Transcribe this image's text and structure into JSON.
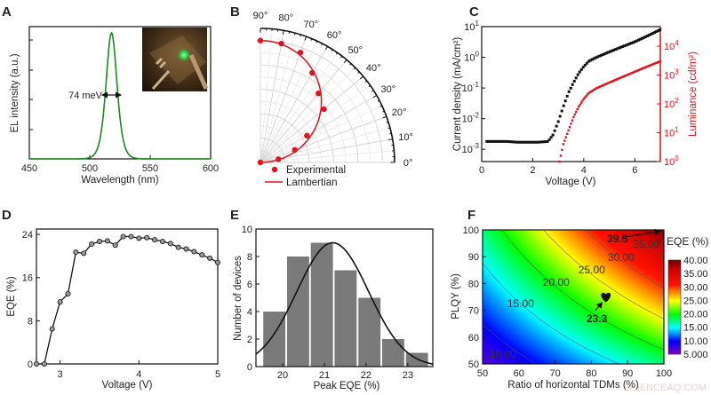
{
  "panels": {
    "a": "A",
    "b": "B",
    "c": "C",
    "d": "D",
    "e": "E",
    "f": "F"
  },
  "watermark": "SCIENCEAQ.COM",
  "colors": {
    "green": "#1a8a1a",
    "red": "#e3121b",
    "black": "#111111",
    "bar": "#7a7a7a"
  },
  "chart_data": [
    {
      "id": "A",
      "type": "line",
      "xlabel": "Wavelength (nm)",
      "ylabel": "EL intensity (a.u.)",
      "xlim": [
        450,
        600
      ],
      "ylim": [
        0,
        1.05
      ],
      "xticks": [
        450,
        500,
        550,
        600
      ],
      "peak_wavelength_nm": 518,
      "fwhm_nm": 16,
      "annotation": "74 meV",
      "inset": "device-photo-green-emission"
    },
    {
      "id": "B",
      "type": "polar",
      "angle_ticks": [
        "0°",
        "10°",
        "20°",
        "30°",
        "40°",
        "50°",
        "60°",
        "70°",
        "80°",
        "90°"
      ],
      "rlim": [
        0,
        1.1
      ],
      "series": [
        {
          "name": "Experimental",
          "style": "markers",
          "angles": [
            0,
            10,
            20,
            30,
            40,
            50,
            60,
            70,
            80,
            90
          ],
          "values": [
            0,
            0.15,
            0.3,
            0.44,
            0.68,
            0.74,
            0.85,
            0.96,
            0.99,
            1.0
          ]
        },
        {
          "name": "Lambertian",
          "style": "line",
          "function": "sin(angle)"
        }
      ]
    },
    {
      "id": "C",
      "type": "scatter",
      "xlabel": "Voltage (V)",
      "ylabel": "Current density (mA/cm²)",
      "ylabel_right": "Luminance (cd/m²)",
      "xlim": [
        0,
        7
      ],
      "xticks": [
        0,
        2,
        4,
        6
      ],
      "ylim_log_left": [
        -3.4,
        1
      ],
      "yticks_left_exp": [
        1,
        0,
        -1,
        -2,
        -3
      ],
      "ylim_log_right": [
        0,
        4.68
      ],
      "yticks_right_exp": [
        0,
        1,
        2,
        3,
        4
      ],
      "current_density": {
        "x": [
          0.2,
          0.6,
          1.0,
          1.4,
          1.8,
          2.2,
          2.6,
          2.8,
          3.0,
          3.2,
          3.4,
          3.6,
          3.8,
          4.0,
          4.2,
          4.5,
          5.0,
          5.5,
          6.0,
          6.5,
          7.0
        ],
        "y": [
          0.0018,
          0.0018,
          0.0018,
          0.0017,
          0.0017,
          0.0017,
          0.0018,
          0.003,
          0.008,
          0.025,
          0.07,
          0.15,
          0.3,
          0.5,
          0.75,
          1.0,
          1.5,
          2.2,
          3.2,
          5,
          8
        ]
      },
      "luminance": {
        "x": [
          3.05,
          3.2,
          3.4,
          3.6,
          3.8,
          4.0,
          4.2,
          4.5,
          5.0,
          5.5,
          6.0,
          6.5,
          7.0
        ],
        "y": [
          1,
          4,
          12,
          35,
          80,
          150,
          240,
          350,
          550,
          850,
          1300,
          2000,
          3000
        ]
      }
    },
    {
      "id": "D",
      "type": "line",
      "xlabel": "Voltage (V)",
      "ylabel": "EQE (%)",
      "xlim": [
        2.7,
        5
      ],
      "ylim": [
        0,
        25
      ],
      "xticks": [
        3,
        4,
        5
      ],
      "yticks": [
        0,
        8,
        16,
        24
      ],
      "x": [
        2.7,
        2.8,
        2.9,
        3.0,
        3.1,
        3.2,
        3.3,
        3.4,
        3.5,
        3.6,
        3.7,
        3.8,
        3.9,
        4.0,
        4.1,
        4.2,
        4.3,
        4.4,
        4.5,
        4.6,
        4.7,
        4.8,
        4.9,
        5.0
      ],
      "y": [
        0,
        0,
        6.5,
        11.5,
        13,
        20.7,
        20.5,
        22.2,
        22.7,
        22.8,
        22,
        23.6,
        23.6,
        23.3,
        23.4,
        23,
        22.7,
        22.3,
        21.6,
        21.3,
        20.8,
        20.2,
        19.6,
        18.8
      ]
    },
    {
      "id": "E",
      "type": "bar",
      "xlabel": "Peak EQE (%)",
      "ylabel": "Number of devices",
      "xlim": [
        19.36,
        23.6
      ],
      "ylim": [
        0,
        10
      ],
      "xticks": [
        20,
        21,
        22,
        23
      ],
      "yticks": [
        0,
        2,
        4,
        6,
        8,
        10
      ],
      "bin_centers": [
        19.8,
        20.37,
        20.94,
        21.51,
        22.08,
        22.65,
        23.22
      ],
      "bin_width": 0.53,
      "counts": [
        4,
        8,
        9,
        7,
        5,
        2,
        1
      ],
      "gaussian_fit": {
        "mean": 21.2,
        "sigma": 0.86,
        "amplitude": 9
      }
    },
    {
      "id": "F",
      "type": "heatmap",
      "xlabel": "Ratio of horizontal TDMs (%)",
      "ylabel": "PLQY (%)",
      "colorbar_label": "EQE (%)",
      "xlim": [
        50,
        100
      ],
      "ylim": [
        50,
        100
      ],
      "xticks": [
        50,
        60,
        70,
        80,
        90,
        100
      ],
      "yticks": [
        50,
        60,
        70,
        80,
        90,
        100
      ],
      "x": [
        50,
        60,
        70,
        80,
        90,
        100
      ],
      "y": [
        50,
        60,
        70,
        80,
        90,
        100
      ],
      "z": [
        [
          6.77,
          8.95,
          11.13,
          13.32,
          15.5,
          17.68
        ],
        [
          8.95,
          11.57,
          14.19,
          16.81,
          19.43,
          22.04
        ],
        [
          11.13,
          14.19,
          17.24,
          20.3,
          23.35,
          26.41
        ],
        [
          13.32,
          16.81,
          20.3,
          23.79,
          27.28,
          30.77
        ],
        [
          15.5,
          19.43,
          23.35,
          27.28,
          31.21,
          35.14
        ],
        [
          17.68,
          22.04,
          26.41,
          30.77,
          35.14,
          39.5
        ]
      ],
      "zlim": [
        5,
        40
      ],
      "colorbar_ticks": [
        "40.00",
        "35.00",
        "30.00",
        "25.00",
        "20.00",
        "15.00",
        "10.00",
        "5.000"
      ],
      "contours": [
        {
          "level": 10,
          "label": "10.00",
          "at": [
            55.6,
            53.6
          ]
        },
        {
          "level": 15,
          "label": "15.00",
          "at": [
            60.5,
            72.5
          ]
        },
        {
          "level": 20,
          "label": "20.00",
          "at": [
            70.3,
            80.5
          ]
        },
        {
          "level": 25,
          "label": "25.00",
          "at": [
            80.1,
            85.1
          ]
        },
        {
          "level": 30,
          "label": "30.00",
          "at": [
            88.2,
            89.7
          ]
        },
        {
          "level": 35,
          "label": "35.00",
          "at": [
            95.1,
            94.7
          ]
        }
      ],
      "markers": [
        {
          "label": "39.5",
          "x": 99,
          "y": 99.5,
          "symbol": "arrow-point"
        },
        {
          "label": "23.3",
          "x": 84,
          "y": 75,
          "symbol": "heart"
        }
      ]
    }
  ]
}
